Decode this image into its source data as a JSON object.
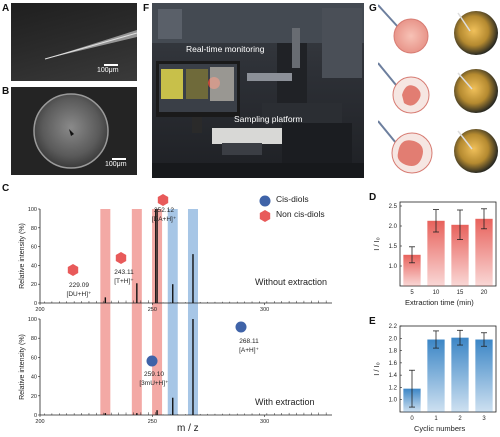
{
  "panels": {
    "a": {
      "label": "A",
      "scalebar": "100μm"
    },
    "b": {
      "label": "B",
      "scalebar": "100μm"
    },
    "c": {
      "label": "C"
    },
    "d": {
      "label": "D"
    },
    "e": {
      "label": "E"
    },
    "f": {
      "label": "F",
      "annotations": [
        "Real-time monitoring",
        "Sampling platform"
      ]
    },
    "g": {
      "label": "G"
    }
  },
  "chart_data": [
    {
      "id": "C",
      "type": "bar",
      "xlabel": "m / z",
      "ylabel": "Relative intensity (%)",
      "legend": [
        {
          "name": "Cis-diols",
          "color": "#3f63a8"
        },
        {
          "name": "Non cis-diols",
          "color": "#e85a5a"
        }
      ],
      "highlight_bands": [
        {
          "x": 229.09,
          "group": "Non cis-diols",
          "color": "#f3a9a5"
        },
        {
          "x": 243.11,
          "group": "Non cis-diols",
          "color": "#f3a9a5"
        },
        {
          "x": 252.12,
          "group": "Non cis-diols",
          "color": "#f3a9a5"
        },
        {
          "x": 259.1,
          "group": "Cis-diols",
          "color": "#a7c6e6"
        },
        {
          "x": 268.11,
          "group": "Cis-diols",
          "color": "#a7c6e6"
        }
      ],
      "subplots": [
        {
          "label": "Without extraction",
          "xlim": [
            200,
            330
          ],
          "ylim": [
            0,
            100
          ],
          "xticks": [
            200,
            250,
            300
          ],
          "yticks": [
            0,
            20,
            40,
            60,
            80,
            100
          ],
          "peaks": [
            {
              "x": 229.09,
              "y": 6,
              "label": "229.09",
              "ion": "[DU+H]⁺"
            },
            {
              "x": 243.11,
              "y": 21,
              "label": "243.11",
              "ion": "[T+H]⁺"
            },
            {
              "x": 252.12,
              "y": 100,
              "label": "252.12",
              "ion": "[DA+H]⁺"
            },
            {
              "x": 259.1,
              "y": 20
            },
            {
              "x": 268.11,
              "y": 52
            }
          ]
        },
        {
          "label": "With extraction",
          "xlim": [
            200,
            330
          ],
          "ylim": [
            0,
            100
          ],
          "xticks": [
            200,
            250,
            300
          ],
          "yticks": [
            0,
            20,
            40,
            60,
            80,
            100
          ],
          "peaks": [
            {
              "x": 229.09,
              "y": 2
            },
            {
              "x": 243.11,
              "y": 2
            },
            {
              "x": 252.12,
              "y": 5
            },
            {
              "x": 259.1,
              "y": 18,
              "label": "259.10",
              "ion": "[3mU+H]⁺"
            },
            {
              "x": 268.11,
              "y": 100,
              "label": "268.11",
              "ion": "[A+H]⁺"
            }
          ]
        }
      ]
    },
    {
      "id": "D",
      "type": "bar",
      "categories": [
        "5",
        "10",
        "15",
        "20"
      ],
      "values": [
        1.28,
        2.13,
        2.03,
        2.18
      ],
      "errors": [
        0.2,
        0.28,
        0.37,
        0.25
      ],
      "xlabel": "Extraction time (min)",
      "ylabel": "I / I₀",
      "ylim": [
        0.5,
        2.6
      ],
      "yticks": [
        1.0,
        1.5,
        2.0,
        2.5
      ],
      "color": "#e8625c"
    },
    {
      "id": "E",
      "type": "bar",
      "categories": [
        "0",
        "1",
        "2",
        "3"
      ],
      "values": [
        1.18,
        1.98,
        2.01,
        1.98
      ],
      "errors": [
        0.3,
        0.14,
        0.12,
        0.11
      ],
      "xlabel": "Cyclic numbers",
      "ylabel": "I / I₀",
      "ylim": [
        0.8,
        2.2
      ],
      "yticks": [
        1.0,
        1.2,
        1.4,
        1.6,
        1.8,
        2.0,
        2.2
      ],
      "color": "#3c86c6"
    }
  ]
}
